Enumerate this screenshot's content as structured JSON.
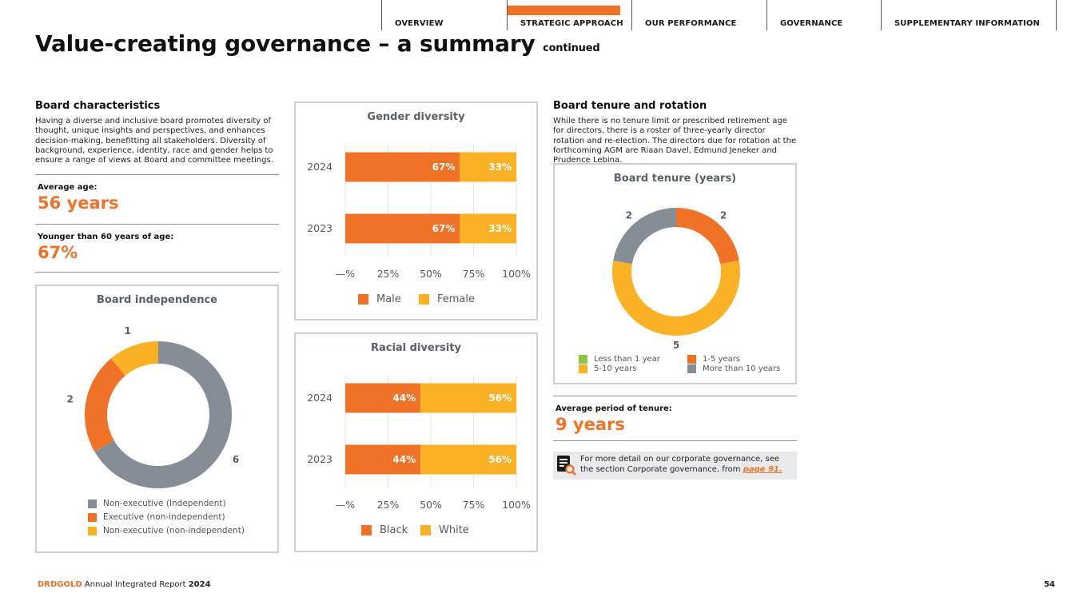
{
  "nav": {
    "items": [
      {
        "label": "OVERVIEW",
        "active": false
      },
      {
        "label": "STRATEGIC APPROACH",
        "active": true
      },
      {
        "label": "OUR PERFORMANCE",
        "active": false
      },
      {
        "label": "GOVERNANCE",
        "active": false
      },
      {
        "label": "SUPPLEMENTARY INFORMATION",
        "active": false
      }
    ]
  },
  "title": {
    "main": "Value-creating governance – a summary",
    "suffix": "continued"
  },
  "board_characteristics": {
    "heading": "Board characteristics",
    "body": "Having a diverse and inclusive board promotes diversity of thought, unique insights and perspectives, and enhances decision-making, benefitting all stakeholders. Diversity of background, experience, identity, race and gender helps to ensure a range of views at Board and committee meetings.",
    "avg_age_label": "Average age:",
    "avg_age_value": "56 years",
    "younger_label": "Younger than 60 years of age:",
    "younger_value": "67%"
  },
  "board_tenure": {
    "heading": "Board tenure and rotation",
    "body": "While there is no tenure limit or prescribed retirement age for directors, there is a roster of three-yearly director rotation and re-election. The directors due for rotation at the forthcoming AGM are Riaan Davel, Edmund Jeneker and Prudence Lebina.",
    "avg_label": "Average period of tenure:",
    "avg_value": "9 years"
  },
  "info_box": {
    "text": "For more detail on our corporate governance, see the section Corporate governance, from",
    "link": "page 91.",
    "icon": "document-search-icon"
  },
  "colors": {
    "orange": "#ef7227",
    "yellow": "#fbb124",
    "grey": "#858e96",
    "green": "#8cc63f"
  },
  "chart_data": [
    {
      "id": "independence",
      "type": "pie",
      "title": "Board independence",
      "slices": [
        {
          "label": "Non-executive (Independent)",
          "value": 6,
          "color": "#858e96"
        },
        {
          "label": "Executive (non-independent)",
          "value": 2,
          "color": "#ef7227"
        },
        {
          "label": "Non-executive (non-independent)",
          "value": 1,
          "color": "#fbb124"
        }
      ]
    },
    {
      "id": "gender",
      "type": "bar",
      "orientation": "horizontal-stacked",
      "title": "Gender diversity",
      "categories": [
        "2024",
        "2023"
      ],
      "series": [
        {
          "name": "Male",
          "values": [
            67,
            67
          ],
          "labels": [
            "67%",
            "67%"
          ],
          "color": "#ef7227"
        },
        {
          "name": "Female",
          "values": [
            33,
            33
          ],
          "labels": [
            "33%",
            "33%"
          ],
          "color": "#fbb124"
        }
      ],
      "xticks": [
        "—%",
        "25%",
        "50%",
        "75%",
        "100%"
      ],
      "xlim": [
        0,
        100
      ]
    },
    {
      "id": "racial",
      "type": "bar",
      "orientation": "horizontal-stacked",
      "title": "Racial diversity",
      "categories": [
        "2024",
        "2023"
      ],
      "series": [
        {
          "name": "Black",
          "values": [
            44,
            44
          ],
          "labels": [
            "44%",
            "44%"
          ],
          "color": "#ef7227"
        },
        {
          "name": "White",
          "values": [
            56,
            56
          ],
          "labels": [
            "56%",
            "56%"
          ],
          "color": "#fbb124"
        }
      ],
      "xticks": [
        "—%",
        "25%",
        "50%",
        "75%",
        "100%"
      ],
      "xlim": [
        0,
        100
      ]
    },
    {
      "id": "tenure",
      "type": "pie",
      "title": "Board tenure (years)",
      "slices": [
        {
          "label": "1-5 years",
          "value": 2,
          "color": "#ef7227"
        },
        {
          "label": "5-10 years",
          "value": 5,
          "color": "#fbb124"
        },
        {
          "label": "More than 10 years",
          "value": 2,
          "color": "#858e96"
        }
      ],
      "legend": [
        {
          "label": "Less than 1 year",
          "color": "#8cc63f"
        },
        {
          "label": "1-5 years",
          "color": "#ef7227"
        },
        {
          "label": "5-10 years",
          "color": "#fbb124"
        },
        {
          "label": "More than 10 years",
          "color": "#858e96"
        }
      ]
    }
  ],
  "footer": {
    "brand": "DRDGOLD",
    "report": "Annual Integrated Report",
    "year": "2024",
    "page": "54"
  }
}
